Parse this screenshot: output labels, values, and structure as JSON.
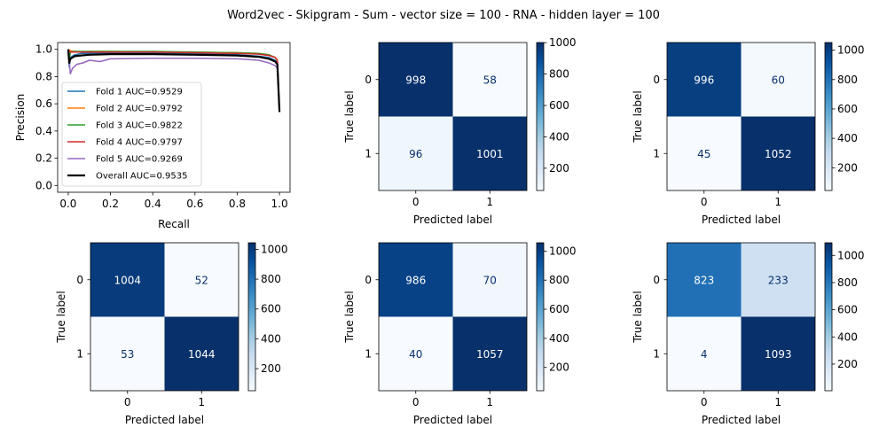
{
  "chart_data": {
    "title": "Word2vec - Skipgram - Sum - vector size = 100 - RNA - hidden layer = 100",
    "pr_curve": {
      "type": "line",
      "xlabel": "Recall",
      "ylabel": "Precision",
      "xlim": [
        -0.05,
        1.05
      ],
      "ylim": [
        -0.05,
        1.05
      ],
      "xticks": [
        0.0,
        0.2,
        0.4,
        0.6,
        0.8,
        1.0
      ],
      "yticks": [
        0.0,
        0.2,
        0.4,
        0.6,
        0.8,
        1.0
      ],
      "legend_position": "lower-left",
      "series": [
        {
          "name": "Fold 1 AUC=0.9529",
          "color": "#1f77b4",
          "x": [
            0.0,
            0.005,
            0.01,
            0.03,
            0.06,
            0.1,
            0.2,
            0.4,
            0.6,
            0.8,
            0.9,
            0.95,
            0.98,
            0.99,
            1.0
          ],
          "y": [
            1.0,
            0.87,
            0.94,
            0.96,
            0.97,
            0.97,
            0.97,
            0.97,
            0.97,
            0.96,
            0.95,
            0.94,
            0.92,
            0.9,
            0.54
          ]
        },
        {
          "name": "Fold 2 AUC=0.9792",
          "color": "#ff7f0e",
          "x": [
            0.0,
            0.01,
            0.03,
            0.06,
            0.1,
            0.2,
            0.4,
            0.6,
            0.8,
            0.9,
            0.95,
            0.98,
            0.99,
            1.0
          ],
          "y": [
            1.0,
            0.99,
            0.985,
            0.98,
            0.985,
            0.985,
            0.98,
            0.98,
            0.975,
            0.97,
            0.96,
            0.94,
            0.92,
            0.54
          ]
        },
        {
          "name": "Fold 3 AUC=0.9822",
          "color": "#2ca02c",
          "x": [
            0.0,
            0.005,
            0.01,
            0.03,
            0.06,
            0.1,
            0.2,
            0.4,
            0.6,
            0.8,
            0.9,
            0.95,
            0.98,
            0.99,
            1.0
          ],
          "y": [
            1.0,
            0.92,
            0.98,
            0.985,
            0.985,
            0.985,
            0.985,
            0.985,
            0.98,
            0.975,
            0.97,
            0.96,
            0.94,
            0.92,
            0.54
          ]
        },
        {
          "name": "Fold 4 AUC=0.9797",
          "color": "#d62728",
          "x": [
            0.0,
            0.01,
            0.03,
            0.06,
            0.1,
            0.2,
            0.4,
            0.6,
            0.8,
            0.9,
            0.95,
            0.98,
            0.99,
            1.0
          ],
          "y": [
            1.0,
            0.98,
            0.98,
            0.98,
            0.98,
            0.98,
            0.98,
            0.975,
            0.97,
            0.965,
            0.955,
            0.94,
            0.92,
            0.54
          ]
        },
        {
          "name": "Fold 5 AUC=0.9269",
          "color": "#9467bd",
          "x": [
            0.0,
            0.01,
            0.02,
            0.04,
            0.07,
            0.1,
            0.15,
            0.2,
            0.4,
            0.6,
            0.8,
            0.9,
            0.95,
            0.98,
            0.99,
            1.0
          ],
          "y": [
            1.0,
            0.82,
            0.86,
            0.89,
            0.9,
            0.92,
            0.91,
            0.93,
            0.935,
            0.935,
            0.93,
            0.92,
            0.9,
            0.88,
            0.86,
            0.54
          ]
        },
        {
          "name": "Overall AUC=0.9535",
          "color": "#000000",
          "bold": true,
          "x": [
            0.0,
            0.005,
            0.01,
            0.03,
            0.06,
            0.1,
            0.2,
            0.4,
            0.6,
            0.8,
            0.9,
            0.95,
            0.98,
            0.99,
            1.0
          ],
          "y": [
            1.0,
            0.9,
            0.93,
            0.95,
            0.955,
            0.96,
            0.965,
            0.965,
            0.96,
            0.955,
            0.945,
            0.93,
            0.91,
            0.89,
            0.54
          ]
        }
      ]
    },
    "confusion_matrices": [
      {
        "type": "heatmap",
        "values": [
          [
            998,
            58
          ],
          [
            96,
            1001
          ]
        ],
        "colorbar_ticks": [
          200,
          400,
          600,
          800,
          1000
        ]
      },
      {
        "type": "heatmap",
        "values": [
          [
            996,
            60
          ],
          [
            45,
            1052
          ]
        ],
        "colorbar_ticks": [
          200,
          400,
          600,
          800,
          1000
        ]
      },
      {
        "type": "heatmap",
        "values": [
          [
            1004,
            52
          ],
          [
            53,
            1044
          ]
        ],
        "colorbar_ticks": [
          200,
          400,
          600,
          800,
          1000
        ]
      },
      {
        "type": "heatmap",
        "values": [
          [
            986,
            70
          ],
          [
            40,
            1057
          ]
        ],
        "colorbar_ticks": [
          200,
          400,
          600,
          800,
          1000
        ]
      },
      {
        "type": "heatmap",
        "values": [
          [
            823,
            233
          ],
          [
            4,
            1093
          ]
        ],
        "colorbar_ticks": [
          200,
          400,
          600,
          800,
          1000
        ]
      }
    ],
    "cm_labels": {
      "xlabel": "Predicted label",
      "ylabel": "True label",
      "classes": [
        "0",
        "1"
      ]
    }
  }
}
